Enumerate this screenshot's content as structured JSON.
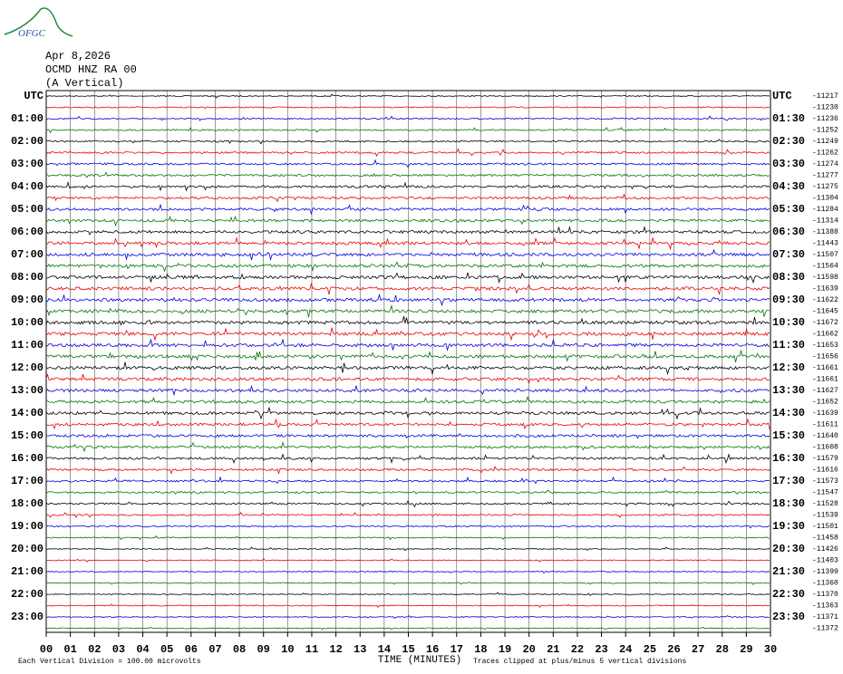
{
  "logo": "OFGC",
  "header": {
    "date": "Apr 8,2026",
    "station": "OCMD HNZ RA 00",
    "component": "(A Vertical)"
  },
  "left_labels": [
    "UTC",
    "01:00",
    "02:00",
    "03:00",
    "04:00",
    "05:00",
    "06:00",
    "07:00",
    "08:00",
    "09:00",
    "10:00",
    "11:00",
    "12:00",
    "13:00",
    "14:00",
    "15:00",
    "16:00",
    "17:00",
    "18:00",
    "19:00",
    "20:00",
    "21:00",
    "22:00",
    "23:00"
  ],
  "right_labels": [
    "UTC",
    "01:30",
    "02:30",
    "03:30",
    "04:30",
    "05:30",
    "06:30",
    "07:30",
    "08:30",
    "09:30",
    "10:30",
    "11:30",
    "12:30",
    "13:30",
    "14:30",
    "15:30",
    "16:30",
    "17:30",
    "18:30",
    "19:30",
    "20:30",
    "21:30",
    "22:30",
    "23:30"
  ],
  "trace_offsets": [
    -11217,
    -11230,
    -11236,
    -11252,
    -11249,
    -11262,
    -11274,
    -11277,
    -11275,
    -11304,
    -11284,
    -11314,
    -11388,
    -11443,
    -11507,
    -11564,
    -11598,
    -11639,
    -11622,
    -11645,
    -11672,
    -11662,
    -11653,
    -11656,
    -11661,
    -11661,
    -11627,
    -11652,
    -11639,
    -11611,
    -11640,
    -11608,
    -11579,
    -11616,
    -11573,
    -11547,
    -11528,
    -11539,
    -11501,
    -11458,
    -11426,
    -11403,
    -11399,
    -11360,
    -11370,
    -11363,
    -11371,
    -11372
  ],
  "x_ticks": [
    "00",
    "01",
    "02",
    "03",
    "04",
    "05",
    "06",
    "07",
    "08",
    "09",
    "10",
    "11",
    "12",
    "13",
    "14",
    "15",
    "16",
    "17",
    "18",
    "19",
    "20",
    "21",
    "22",
    "23",
    "24",
    "25",
    "26",
    "27",
    "28",
    "29",
    "30"
  ],
  "footer": {
    "scale": "Each Vertical Division =  100.00 microvolts",
    "axis_title": "TIME (MINUTES)",
    "clip_note": "Traces clipped at plus/minus 5 vertical divisions"
  }
}
